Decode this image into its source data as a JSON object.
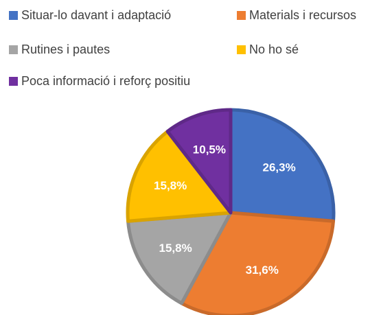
{
  "chart_data": {
    "type": "pie",
    "categories": [
      "Situar-lo davant i adaptació",
      "Materials i recursos",
      "Rutines i pautes",
      "No ho sé",
      "Poca informació i reforç positiu"
    ],
    "values": [
      26.3,
      31.6,
      15.8,
      15.8,
      10.5
    ],
    "value_labels": [
      "26,3%",
      "31,6%",
      "15,8%",
      "15,8%",
      "10,5%"
    ],
    "colors": [
      "#4472c4",
      "#ed7d31",
      "#a5a5a5",
      "#ffc000",
      "#7030a0"
    ],
    "legend": "top"
  }
}
